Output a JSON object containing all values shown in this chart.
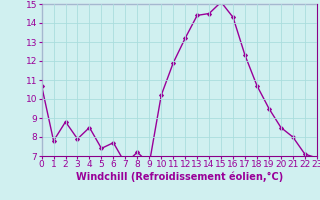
{
  "x": [
    0,
    1,
    2,
    3,
    4,
    5,
    6,
    7,
    8,
    9,
    10,
    11,
    12,
    13,
    14,
    15,
    16,
    17,
    18,
    19,
    20,
    21,
    22,
    23
  ],
  "y": [
    10.7,
    7.8,
    8.8,
    7.9,
    8.5,
    7.4,
    7.7,
    6.6,
    7.2,
    6.6,
    10.2,
    11.9,
    13.2,
    14.4,
    14.5,
    15.1,
    14.3,
    12.3,
    10.7,
    9.5,
    8.5,
    8.0,
    7.1,
    6.9
  ],
  "line_color": "#990099",
  "marker": "D",
  "marker_size": 2,
  "bg_color": "#d0f0f0",
  "grid_color": "#aadddd",
  "xlabel": "Windchill (Refroidissement éolien,°C)",
  "ylim": [
    7,
    15
  ],
  "xlim": [
    0,
    23
  ],
  "yticks": [
    7,
    8,
    9,
    10,
    11,
    12,
    13,
    14,
    15
  ],
  "xticks": [
    0,
    1,
    2,
    3,
    4,
    5,
    6,
    7,
    8,
    9,
    10,
    11,
    12,
    13,
    14,
    15,
    16,
    17,
    18,
    19,
    20,
    21,
    22,
    23
  ],
  "xlabel_fontsize": 7,
  "tick_fontsize": 6.5,
  "spine_color": "#880088",
  "linewidth": 1.0
}
